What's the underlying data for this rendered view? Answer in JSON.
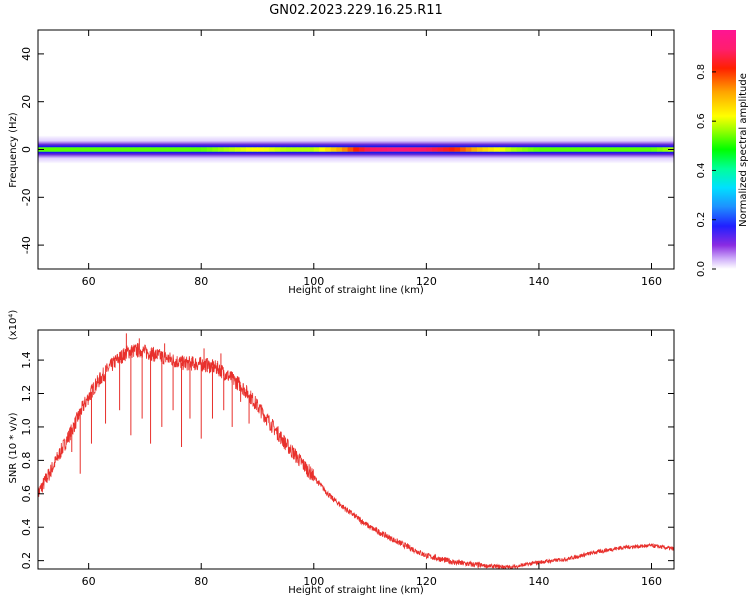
{
  "title": "GN02.2023.229.16.25.R11",
  "chart_data": [
    {
      "type": "heatmap",
      "xlabel": "Height of straight line (km)",
      "ylabel": "Frequency (Hz)",
      "xlim": [
        51,
        164
      ],
      "ylim": [
        -50,
        50
      ],
      "xticks": [
        60,
        80,
        100,
        120,
        140,
        160
      ],
      "yticks": [
        40,
        20,
        0,
        -20,
        -40
      ],
      "band": {
        "center_hz": 0,
        "x": [
          51,
          60,
          70,
          80,
          85,
          90,
          95,
          100,
          105,
          110,
          115,
          120,
          125,
          130,
          135,
          140,
          150,
          160,
          164
        ],
        "amplitude": [
          0.55,
          0.55,
          0.55,
          0.55,
          0.6,
          0.65,
          0.6,
          0.6,
          0.75,
          0.95,
          0.97,
          0.95,
          0.85,
          0.7,
          0.6,
          0.55,
          0.55,
          0.55,
          0.6
        ]
      },
      "colorbar": {
        "label": "Normalized spectral amplitude",
        "ticks": [
          "0.0",
          "0.2",
          "0.4",
          "0.6",
          "0.8"
        ],
        "range": [
          0,
          0.97
        ]
      }
    },
    {
      "type": "line",
      "xlabel": "Height of straight line (km)",
      "ylabel": "SNR (10 * v/v)",
      "yscale_label": "(x10⁴)",
      "xlim": [
        51,
        164
      ],
      "ylim": [
        0.15,
        1.58
      ],
      "xticks": [
        60,
        80,
        100,
        120,
        140,
        160
      ],
      "yticks": [
        "0.2",
        "0.4",
        "0.6",
        "0.8",
        "1.0",
        "1.2",
        "1.4"
      ],
      "color": "#e8302c",
      "series": [
        {
          "x": [
            51,
            53,
            55,
            57,
            59,
            61,
            63,
            65,
            67,
            69,
            71,
            73,
            75,
            77,
            79,
            81,
            83,
            85,
            87,
            89,
            91,
            93,
            95,
            97,
            100,
            103,
            106,
            110,
            115,
            120,
            125,
            130,
            135,
            140,
            145,
            150,
            155,
            160,
            164
          ],
          "values": [
            0.6,
            0.72,
            0.85,
            0.98,
            1.12,
            1.24,
            1.33,
            1.4,
            1.45,
            1.46,
            1.44,
            1.42,
            1.4,
            1.38,
            1.38,
            1.37,
            1.35,
            1.3,
            1.25,
            1.17,
            1.08,
            0.99,
            0.9,
            0.82,
            0.7,
            0.58,
            0.5,
            0.4,
            0.31,
            0.23,
            0.19,
            0.17,
            0.16,
            0.19,
            0.21,
            0.25,
            0.28,
            0.29,
            0.27
          ],
          "dips": [
            {
              "x": 57.0,
              "y": 0.85
            },
            {
              "x": 58.5,
              "y": 0.72
            },
            {
              "x": 60.5,
              "y": 0.9
            },
            {
              "x": 63.0,
              "y": 1.02
            },
            {
              "x": 65.5,
              "y": 1.1
            },
            {
              "x": 67.5,
              "y": 0.95
            },
            {
              "x": 69.5,
              "y": 1.05
            },
            {
              "x": 71.0,
              "y": 0.9
            },
            {
              "x": 73.0,
              "y": 1.0
            },
            {
              "x": 75.0,
              "y": 1.1
            },
            {
              "x": 76.5,
              "y": 0.88
            },
            {
              "x": 78.0,
              "y": 1.05
            },
            {
              "x": 80.0,
              "y": 0.93
            },
            {
              "x": 82.0,
              "y": 1.05
            },
            {
              "x": 84.0,
              "y": 1.1
            },
            {
              "x": 85.5,
              "y": 1.0
            },
            {
              "x": 87.0,
              "y": 1.15
            },
            {
              "x": 88.5,
              "y": 1.02
            }
          ],
          "spikes": [
            {
              "x": 66.7,
              "y": 1.56
            },
            {
              "x": 69.0,
              "y": 1.53
            },
            {
              "x": 73.5,
              "y": 1.5
            },
            {
              "x": 80.5,
              "y": 1.47
            },
            {
              "x": 83.5,
              "y": 1.44
            }
          ]
        }
      ]
    }
  ]
}
